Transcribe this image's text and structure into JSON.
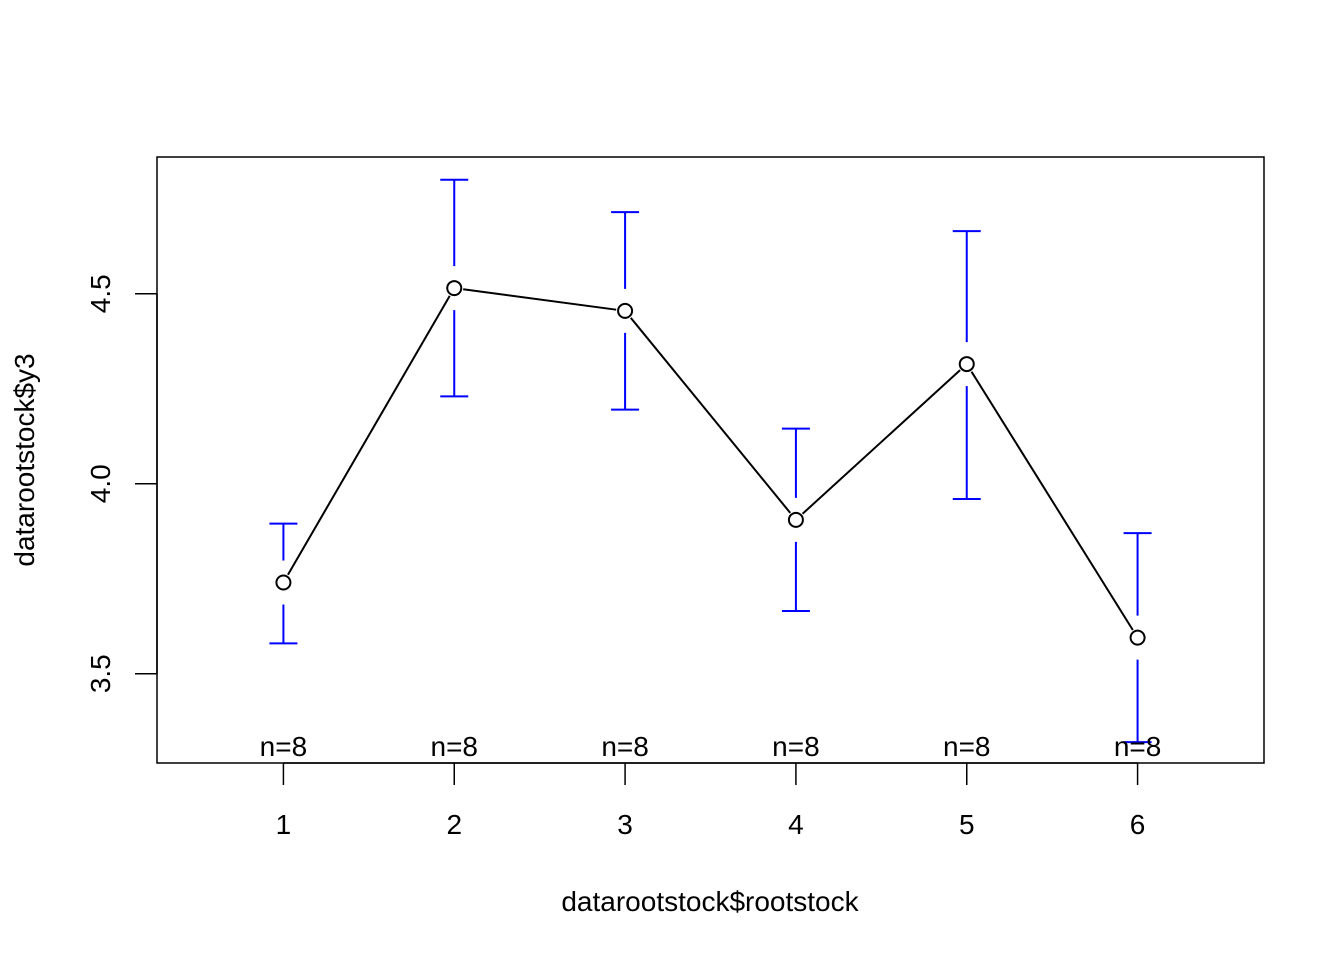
{
  "chart_data": {
    "type": "line",
    "xlabel": "datarootstock$rootstock",
    "ylabel": "datarootstock$y3",
    "x": [
      1,
      2,
      3,
      4,
      5,
      6
    ],
    "x_tick_labels": [
      "1",
      "2",
      "3",
      "4",
      "5",
      "6"
    ],
    "y_ticks": [
      3.5,
      4.0,
      4.5
    ],
    "y_tick_labels": [
      "3.5",
      "4.0",
      "4.5"
    ],
    "xlim": [
      0.26,
      6.74
    ],
    "ylim": [
      3.265,
      4.86
    ],
    "means": [
      3.74,
      4.515,
      4.455,
      3.905,
      4.315,
      3.595
    ],
    "ci_lower": [
      3.58,
      4.23,
      4.195,
      3.665,
      3.96,
      3.32
    ],
    "ci_upper": [
      3.895,
      4.8,
      4.715,
      4.145,
      4.665,
      3.87
    ],
    "n_labels": [
      "n=8",
      "n=8",
      "n=8",
      "n=8",
      "n=8",
      "n=8"
    ],
    "line_color": "#000000",
    "errorbar_color": "#0000ff",
    "grid": false,
    "legend": "none"
  }
}
